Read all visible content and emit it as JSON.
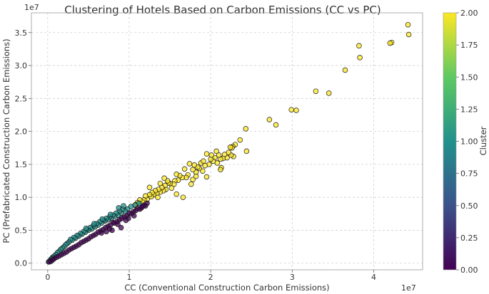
{
  "chart_data": {
    "type": "scatter",
    "title": "Clustering of Hotels Based on Carbon Emissions (CC vs PC)",
    "xlabel": "CC (Conventional Construction Carbon Emissions)",
    "ylabel": "PC (Prefabricated Construction Carbon Emissions)",
    "x_scale_label": "1e7",
    "y_scale_label": "1e7",
    "xlim": [
      -0.2,
      4.6
    ],
    "ylim": [
      -0.1,
      3.8
    ],
    "x_ticks": [
      0,
      1,
      2,
      3,
      4
    ],
    "x_tick_labels": [
      "0",
      "1",
      "2",
      "3",
      "4"
    ],
    "y_ticks": [
      0.0,
      0.5,
      1.0,
      1.5,
      2.0,
      2.5,
      3.0,
      3.5
    ],
    "y_tick_labels": [
      "0.0",
      "0.5",
      "1.0",
      "1.5",
      "2.0",
      "2.5",
      "3.0",
      "3.5"
    ],
    "grid": true,
    "colorbar": {
      "label": "Cluster",
      "range": [
        0.0,
        2.0
      ],
      "ticks": [
        0.0,
        0.25,
        0.5,
        0.75,
        1.0,
        1.25,
        1.5,
        1.75,
        2.0
      ],
      "tick_labels": [
        "0.00",
        "0.25",
        "0.50",
        "0.75",
        "1.00",
        "1.25",
        "1.50",
        "1.75",
        "2.00"
      ],
      "colormap": [
        "#440154",
        "#3b528b",
        "#21918c",
        "#5ec962",
        "#fde725"
      ]
    },
    "series": [
      {
        "cluster": 2,
        "color": "#fde725",
        "points": [
          [
            4.42,
            3.62
          ],
          [
            4.43,
            3.47
          ],
          [
            4.22,
            3.35
          ],
          [
            4.2,
            3.34
          ],
          [
            3.82,
            3.3
          ],
          [
            3.83,
            3.12
          ],
          [
            3.65,
            2.93
          ],
          [
            3.45,
            2.58
          ],
          [
            3.29,
            2.61
          ],
          [
            3.05,
            2.32
          ],
          [
            2.99,
            2.33
          ],
          [
            2.8,
            2.1
          ],
          [
            2.72,
            2.18
          ],
          [
            2.43,
            2.04
          ],
          [
            2.36,
            1.87
          ],
          [
            2.44,
            1.7
          ],
          [
            2.3,
            1.8
          ],
          [
            2.27,
            1.77
          ],
          [
            2.26,
            1.75
          ],
          [
            2.24,
            1.76
          ],
          [
            2.28,
            1.62
          ],
          [
            2.25,
            1.64
          ],
          [
            2.2,
            1.6
          ],
          [
            2.22,
            1.68
          ],
          [
            2.17,
            1.65
          ],
          [
            2.15,
            1.59
          ],
          [
            2.12,
            1.58
          ],
          [
            2.1,
            1.64
          ],
          [
            2.08,
            1.52
          ],
          [
            2.05,
            1.6
          ],
          [
            2.03,
            1.55
          ],
          [
            2.0,
            1.58
          ],
          [
            1.98,
            1.5
          ],
          [
            1.95,
            1.66
          ],
          [
            2.13,
            1.45
          ],
          [
            2.12,
            1.42
          ],
          [
            2.07,
            1.7
          ],
          [
            1.93,
            1.48
          ],
          [
            1.9,
            1.4
          ],
          [
            1.88,
            1.52
          ],
          [
            1.86,
            1.44
          ],
          [
            1.84,
            1.46
          ],
          [
            1.82,
            1.38
          ],
          [
            1.8,
            1.49
          ],
          [
            1.78,
            1.42
          ],
          [
            1.74,
            1.51
          ],
          [
            1.72,
            1.34
          ],
          [
            1.7,
            1.3
          ],
          [
            1.68,
            1.43
          ],
          [
            1.65,
            1.3
          ],
          [
            1.62,
            1.33
          ],
          [
            1.6,
            1.26
          ],
          [
            1.58,
            1.35
          ],
          [
            1.56,
            1.25
          ],
          [
            1.55,
            1.2
          ],
          [
            1.52,
            1.14
          ],
          [
            1.5,
            1.21
          ],
          [
            1.48,
            1.22
          ],
          [
            1.45,
            1.12
          ],
          [
            1.44,
            1.18
          ],
          [
            1.42,
            1.1
          ],
          [
            1.4,
            1.15
          ],
          [
            1.38,
            1.08
          ],
          [
            1.36,
            1.12
          ],
          [
            1.34,
            1.06
          ],
          [
            1.32,
            1.1
          ],
          [
            1.3,
            1.04
          ],
          [
            1.28,
            1.07
          ],
          [
            1.27,
            1.01
          ],
          [
            1.25,
            1.04
          ],
          [
            1.22,
            0.97
          ],
          [
            1.2,
            1.02
          ],
          [
            1.18,
            0.96
          ],
          [
            1.16,
            0.93
          ],
          [
            1.13,
            0.96
          ],
          [
            1.1,
            0.92
          ],
          [
            1.08,
            0.89
          ],
          [
            1.25,
            1.15
          ],
          [
            1.47,
            1.25
          ],
          [
            1.58,
            1.05
          ],
          [
            1.76,
            1.2
          ],
          [
            1.66,
            1.0
          ],
          [
            1.78,
            1.27
          ],
          [
            1.82,
            1.32
          ],
          [
            1.95,
            1.31
          ],
          [
            1.43,
            1.29
          ],
          [
            1.38,
            1.21
          ],
          [
            2.01,
            1.64
          ],
          [
            1.91,
            1.55
          ],
          [
            1.35,
            1.0
          ]
        ]
      },
      {
        "cluster": 1,
        "color": "#21918c",
        "points": [
          [
            1.12,
            0.91
          ],
          [
            1.07,
            0.88
          ],
          [
            1.02,
            0.86
          ],
          [
            0.98,
            0.82
          ],
          [
            0.95,
            0.79
          ],
          [
            0.92,
            0.82
          ],
          [
            0.9,
            0.76
          ],
          [
            0.88,
            0.79
          ],
          [
            0.86,
            0.73
          ],
          [
            0.84,
            0.76
          ],
          [
            0.82,
            0.71
          ],
          [
            0.8,
            0.73
          ],
          [
            0.78,
            0.68
          ],
          [
            0.76,
            0.7
          ],
          [
            0.74,
            0.66
          ],
          [
            0.72,
            0.68
          ],
          [
            0.7,
            0.64
          ],
          [
            0.68,
            0.65
          ],
          [
            0.66,
            0.61
          ],
          [
            0.64,
            0.63
          ],
          [
            0.62,
            0.58
          ],
          [
            0.6,
            0.6
          ],
          [
            0.58,
            0.55
          ],
          [
            0.56,
            0.57
          ],
          [
            0.54,
            0.52
          ],
          [
            0.52,
            0.54
          ],
          [
            0.5,
            0.5
          ],
          [
            0.48,
            0.51
          ],
          [
            0.46,
            0.47
          ],
          [
            0.44,
            0.48
          ],
          [
            0.42,
            0.44
          ],
          [
            0.4,
            0.45
          ],
          [
            0.38,
            0.41
          ],
          [
            0.36,
            0.42
          ],
          [
            0.34,
            0.38
          ],
          [
            0.32,
            0.39
          ],
          [
            0.3,
            0.35
          ],
          [
            0.28,
            0.36
          ],
          [
            0.26,
            0.32
          ],
          [
            0.24,
            0.3
          ],
          [
            0.22,
            0.28
          ],
          [
            0.2,
            0.25
          ],
          [
            0.18,
            0.23
          ],
          [
            0.16,
            0.21
          ],
          [
            0.14,
            0.18
          ],
          [
            0.12,
            0.16
          ],
          [
            0.1,
            0.13
          ],
          [
            0.08,
            0.11
          ],
          [
            0.06,
            0.09
          ],
          [
            0.05,
            0.07
          ],
          [
            0.04,
            0.06
          ],
          [
            0.03,
            0.04
          ],
          [
            0.02,
            0.03
          ],
          [
            0.01,
            0.02
          ],
          [
            0.87,
            0.84
          ],
          [
            0.93,
            0.87
          ],
          [
            0.77,
            0.74
          ],
          [
            0.67,
            0.67
          ],
          [
            0.57,
            0.6
          ],
          [
            0.47,
            0.53
          ]
        ]
      },
      {
        "cluster": 0,
        "color": "#440154",
        "points": [
          [
            1.22,
            0.91
          ],
          [
            1.2,
            0.87
          ],
          [
            1.18,
            0.88
          ],
          [
            1.15,
            0.84
          ],
          [
            1.1,
            0.83
          ],
          [
            1.08,
            0.8
          ],
          [
            1.05,
            0.78
          ],
          [
            1.03,
            0.75
          ],
          [
            1.0,
            0.76
          ],
          [
            0.97,
            0.72
          ],
          [
            0.94,
            0.7
          ],
          [
            0.91,
            0.68
          ],
          [
            0.88,
            0.66
          ],
          [
            0.85,
            0.63
          ],
          [
            0.82,
            0.61
          ],
          [
            0.8,
            0.62
          ],
          [
            0.77,
            0.58
          ],
          [
            0.74,
            0.56
          ],
          [
            0.71,
            0.54
          ],
          [
            0.68,
            0.51
          ],
          [
            0.65,
            0.49
          ],
          [
            0.62,
            0.47
          ],
          [
            0.59,
            0.44
          ],
          [
            0.56,
            0.42
          ],
          [
            0.53,
            0.4
          ],
          [
            0.5,
            0.37
          ],
          [
            0.47,
            0.35
          ],
          [
            0.44,
            0.33
          ],
          [
            0.41,
            0.31
          ],
          [
            0.38,
            0.28
          ],
          [
            0.35,
            0.26
          ],
          [
            0.32,
            0.24
          ],
          [
            0.29,
            0.22
          ],
          [
            0.26,
            0.2
          ],
          [
            0.23,
            0.17
          ],
          [
            0.2,
            0.15
          ],
          [
            0.17,
            0.13
          ],
          [
            0.14,
            0.11
          ],
          [
            0.11,
            0.09
          ],
          [
            0.08,
            0.07
          ],
          [
            0.06,
            0.05
          ],
          [
            0.04,
            0.03
          ],
          [
            0.02,
            0.02
          ],
          [
            1.06,
            0.72
          ],
          [
            0.96,
            0.65
          ],
          [
            0.86,
            0.59
          ],
          [
            0.76,
            0.52
          ],
          [
            0.66,
            0.46
          ],
          [
            0.9,
            0.54
          ],
          [
            0.79,
            0.5
          ],
          [
            1.13,
            0.82
          ],
          [
            0.99,
            0.68
          ],
          [
            1.16,
            0.86
          ],
          [
            0.72,
            0.48
          ]
        ]
      }
    ]
  }
}
